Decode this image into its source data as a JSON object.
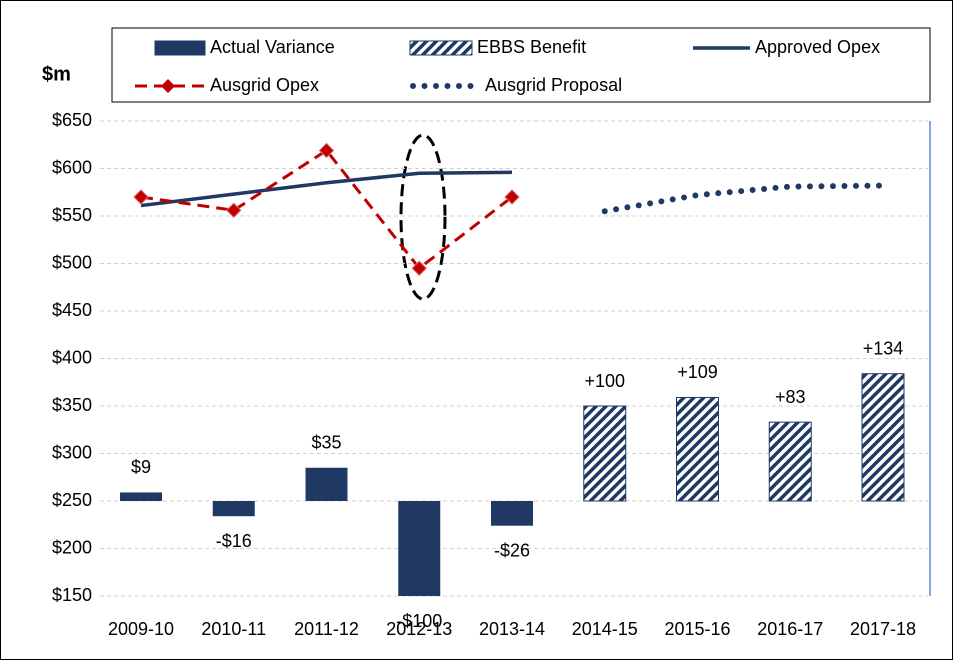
{
  "chart_data": {
    "type": "combo",
    "y_label": "$m",
    "categories": [
      "2009-10",
      "2010-11",
      "2011-12",
      "2012-13",
      "2013-14",
      "2014-15",
      "2015-16",
      "2016-17",
      "2017-18"
    ],
    "ylim": [
      150,
      650
    ],
    "yticks": [
      {
        "value": 150,
        "label": "$150"
      },
      {
        "value": 200,
        "label": "$200"
      },
      {
        "value": 250,
        "label": "$250"
      },
      {
        "value": 300,
        "label": "$300"
      },
      {
        "value": 350,
        "label": "$350"
      },
      {
        "value": 400,
        "label": "$400"
      },
      {
        "value": 450,
        "label": "$450"
      },
      {
        "value": 500,
        "label": "$500"
      },
      {
        "value": 550,
        "label": "$550"
      },
      {
        "value": 600,
        "label": "$600"
      },
      {
        "value": 650,
        "label": "$650"
      }
    ],
    "grid": true,
    "bar_base": 250,
    "series": [
      {
        "name": "Actual Variance",
        "type": "bar",
        "style": "solid",
        "color": "#1f3864",
        "values": [
          9,
          -16,
          35,
          -100,
          -26,
          null,
          null,
          null,
          null
        ],
        "value_labels": [
          "$9",
          "-$16",
          "$35",
          "-$100",
          "-$26",
          null,
          null,
          null,
          null
        ]
      },
      {
        "name": "EBBS Benefit",
        "type": "bar",
        "style": "hatched",
        "color": "#1f3864",
        "values": [
          null,
          null,
          null,
          null,
          null,
          100,
          109,
          83,
          134
        ],
        "value_labels": [
          null,
          null,
          null,
          null,
          null,
          "+100",
          "+109",
          "+83",
          "+134"
        ]
      },
      {
        "name": "Approved Opex",
        "type": "line",
        "style": "solid",
        "color": "#1f3864",
        "values": [
          561,
          573,
          585,
          595,
          596,
          null,
          null,
          null,
          null
        ]
      },
      {
        "name": "Ausgrid Opex",
        "type": "line",
        "style": "dashed",
        "marker": "diamond",
        "color": "#c00000",
        "values": [
          570,
          556,
          619,
          495,
          570,
          null,
          null,
          null,
          null
        ]
      },
      {
        "name": "Ausgrid Proposal",
        "type": "line",
        "style": "dotted",
        "color": "#1f3864",
        "values": [
          null,
          null,
          null,
          null,
          null,
          555,
          572,
          581,
          582
        ]
      }
    ]
  }
}
